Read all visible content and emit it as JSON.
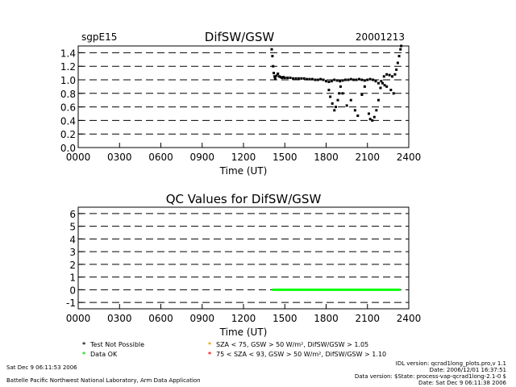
{
  "chart_data": [
    {
      "type": "scatter",
      "station": "sgpE15",
      "title": "DifSW/GSW",
      "date": "20001213",
      "xlabel": "Time (UT)",
      "xlim": [
        0,
        2400
      ],
      "ylim": [
        0,
        1.5
      ],
      "yticks": [
        "0.0",
        "0.2",
        "0.4",
        "0.6",
        "0.8",
        "1.0",
        "1.2",
        "1.4"
      ],
      "xticks": [
        "0000",
        "0300",
        "0600",
        "0900",
        "1200",
        "1500",
        "1800",
        "2100",
        "2400"
      ],
      "grid": "dashed horizontal",
      "series": [
        {
          "color": "#000000",
          "x": [
            1405,
            1410,
            1415,
            1420,
            1425,
            1430,
            1440,
            1450,
            1460,
            1470,
            1480,
            1490,
            1500,
            1520,
            1540,
            1560,
            1580,
            1600,
            1620,
            1640,
            1660,
            1680,
            1700,
            1720,
            1740,
            1760,
            1780,
            1800,
            1820,
            1840,
            1860,
            1880,
            1900,
            1920,
            1940,
            1960,
            1980,
            2000,
            2020,
            2040,
            2060,
            2080,
            2100,
            2120,
            2140,
            2160,
            2180,
            2200,
            2220,
            2240,
            2260,
            2280,
            2300,
            2310,
            2320,
            2330,
            2340,
            2345,
            1820,
            1830,
            1845,
            1860,
            1870,
            1885,
            1895,
            1905,
            1920,
            1950,
            1980,
            2010,
            2030,
            2060,
            2080,
            2110,
            2120,
            2135,
            2150,
            2165,
            2180,
            2195,
            2210,
            2225,
            2240,
            2270,
            2290
          ],
          "y": [
            1.45,
            1.35,
            1.2,
            1.1,
            1.05,
            1.02,
            1.06,
            1.09,
            1.05,
            1.04,
            1.03,
            1.04,
            1.03,
            1.03,
            1.03,
            1.02,
            1.02,
            1.02,
            1.02,
            1.02,
            1.01,
            1.01,
            1.01,
            1.0,
            1.0,
            1.01,
            1.0,
            0.98,
            0.97,
            0.98,
            1.0,
            0.99,
            0.98,
            0.99,
            1.0,
            1.0,
            1.01,
            1.0,
            1.0,
            1.01,
            1.0,
            0.99,
            1.0,
            1.01,
            1.0,
            0.98,
            0.95,
            0.98,
            1.05,
            1.08,
            1.07,
            1.05,
            1.08,
            1.15,
            1.25,
            1.35,
            1.45,
            1.5,
            0.85,
            0.75,
            0.65,
            0.55,
            0.6,
            0.7,
            0.8,
            0.9,
            0.8,
            0.62,
            0.7,
            0.55,
            0.47,
            0.78,
            0.9,
            0.5,
            0.42,
            0.4,
            0.45,
            0.55,
            0.7,
            0.88,
            0.95,
            0.92,
            0.9,
            0.85,
            0.8
          ]
        }
      ]
    },
    {
      "type": "scatter",
      "title": "QC Values for DifSW/GSW",
      "xlabel": "Time (UT)",
      "xlim": [
        0,
        2400
      ],
      "ylim": [
        -1.5,
        6.5
      ],
      "yticks": [
        "-1",
        "0",
        "1",
        "2",
        "3",
        "4",
        "5",
        "6"
      ],
      "xticks": [
        "0000",
        "0300",
        "0600",
        "0900",
        "1200",
        "1500",
        "1800",
        "2100",
        "2400"
      ],
      "grid": "dashed horizontal",
      "series": [
        {
          "color": "#00ff00",
          "x_start": 1410,
          "x_end": 2340,
          "y": 0
        }
      ]
    }
  ],
  "legend": [
    {
      "color": "#000000",
      "text": "Test Not Possible"
    },
    {
      "color": "#00dd00",
      "text": "Data OK"
    },
    {
      "color": "#e8a000",
      "text": "SZA < 75, GSW > 50 W/m², DifSW/GSW > 1.05"
    },
    {
      "color": "#ff0000",
      "text": "75 < SZA < 93, GSW > 50 W/m², DifSW/GSW > 1.10"
    }
  ],
  "footer": {
    "left_date": "Sat Dec  9 06:11:53 2006",
    "left_lab": "Battelle Pacific Northwest National Laboratory, Arm Data Application",
    "right_1": "IDL version: qcrad1long_plots.pro,v 1.1",
    "right_2": "Date: 2006/12/01 16:37:51",
    "right_3": "Data version: $State: process-vap-qcrad1long-2.1-0 $",
    "right_4": "Date: Sat Dec  9 06:11:38 2006"
  }
}
